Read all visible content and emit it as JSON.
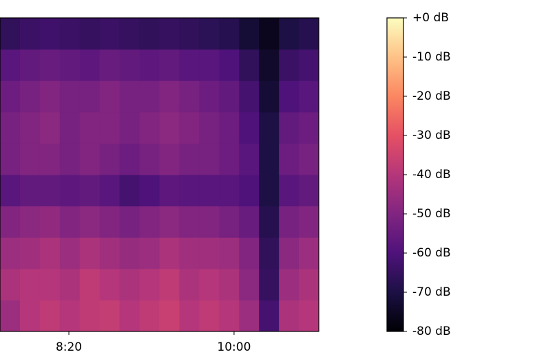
{
  "chart_data": {
    "type": "spectrogram",
    "xlim": [
      458.3,
      651.3
    ],
    "xticks": [
      {
        "value": 500,
        "label": "8:20"
      },
      {
        "value": 600,
        "label": "10:00"
      }
    ],
    "zlim": [
      -80,
      0
    ],
    "zticks": [
      {
        "value": 0,
        "label": "+0 dB"
      },
      {
        "value": -10,
        "label": "-10 dB"
      },
      {
        "value": -20,
        "label": "-20 dB"
      },
      {
        "value": -30,
        "label": "-30 dB"
      },
      {
        "value": -40,
        "label": "-40 dB"
      },
      {
        "value": -50,
        "label": "-50 dB"
      },
      {
        "value": -60,
        "label": "-60 dB"
      },
      {
        "value": -70,
        "label": "-70 dB"
      },
      {
        "value": -80,
        "label": "-80 dB"
      }
    ],
    "colorscale": [
      "#000004",
      "#1c1044",
      "#4f127b",
      "#812581",
      "#b5367a",
      "#e55064",
      "#fb8761",
      "#fec287",
      "#fcfdbf"
    ],
    "values": [
      [
        -45,
        -40,
        -38,
        -40,
        -38,
        -37,
        -40,
        -38,
        -36,
        -40,
        -38,
        -40,
        -45,
        -62,
        -42,
        -40
      ],
      [
        -42,
        -40,
        -40,
        -42,
        -38,
        -40,
        -42,
        -40,
        -38,
        -42,
        -40,
        -42,
        -48,
        -65,
        -45,
        -42
      ],
      [
        -45,
        -44,
        -42,
        -45,
        -42,
        -44,
        -46,
        -45,
        -42,
        -44,
        -44,
        -45,
        -50,
        -66,
        -48,
        -45
      ],
      [
        -50,
        -48,
        -47,
        -50,
        -48,
        -50,
        -52,
        -50,
        -48,
        -50,
        -50,
        -52,
        -55,
        -68,
        -52,
        -50
      ],
      [
        -58,
        -56,
        -56,
        -57,
        -56,
        -58,
        -62,
        -60,
        -57,
        -58,
        -58,
        -58,
        -60,
        -70,
        -58,
        -56
      ],
      [
        -52,
        -50,
        -50,
        -52,
        -50,
        -52,
        -54,
        -52,
        -50,
        -52,
        -52,
        -54,
        -58,
        -70,
        -54,
        -52
      ],
      [
        -52,
        -50,
        -48,
        -52,
        -50,
        -50,
        -52,
        -50,
        -48,
        -50,
        -52,
        -54,
        -60,
        -70,
        -56,
        -54
      ],
      [
        -54,
        -52,
        -50,
        -52,
        -52,
        -50,
        -52,
        -52,
        -50,
        -52,
        -54,
        -56,
        -62,
        -72,
        -60,
        -58
      ],
      [
        -58,
        -56,
        -55,
        -56,
        -57,
        -55,
        -56,
        -57,
        -56,
        -58,
        -58,
        -60,
        -66,
        -74,
        -64,
        -62
      ],
      [
        -66,
        -64,
        -63,
        -64,
        -65,
        -64,
        -65,
        -66,
        -65,
        -66,
        -67,
        -68,
        -72,
        -76,
        -70,
        -68
      ]
    ]
  }
}
